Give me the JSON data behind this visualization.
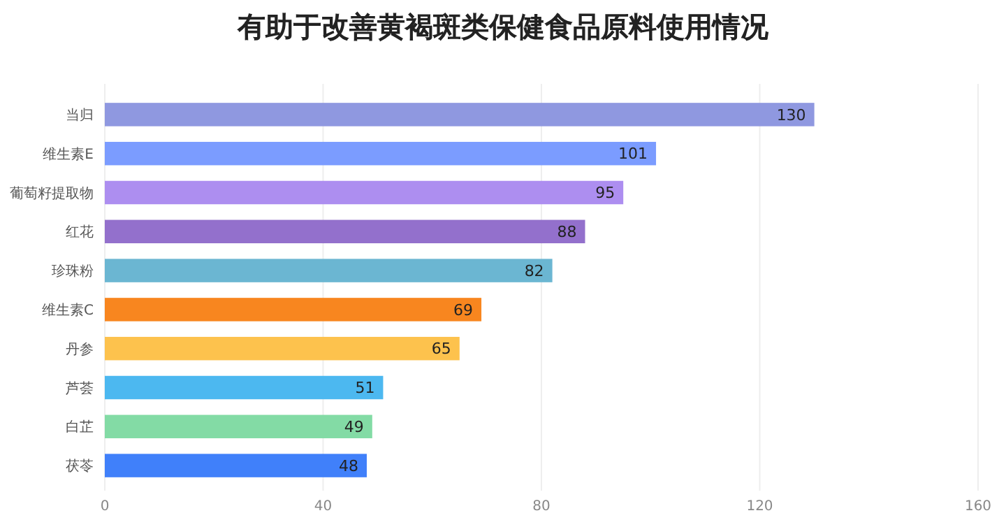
{
  "chart_data": {
    "type": "bar",
    "orientation": "horizontal",
    "title": "有助于改善黄褐斑类保健食品原料使用情况",
    "categories": [
      "当归",
      "维生素E",
      "葡萄籽提取物",
      "红花",
      "珍珠粉",
      "维生素C",
      "丹参",
      "芦荟",
      "白芷",
      "茯苓"
    ],
    "values": [
      130,
      101,
      95,
      88,
      82,
      69,
      65,
      51,
      49,
      48
    ],
    "colors": [
      "#8f98e0",
      "#7b9cff",
      "#ad8ef0",
      "#9370cc",
      "#6bb6d2",
      "#f8861f",
      "#fdc24d",
      "#4cb8f0",
      "#83dba5",
      "#4080fa"
    ],
    "xlim": [
      0,
      160
    ],
    "xticks": [
      0,
      40,
      80,
      120,
      160
    ],
    "grid": "x",
    "data_labels": true
  }
}
